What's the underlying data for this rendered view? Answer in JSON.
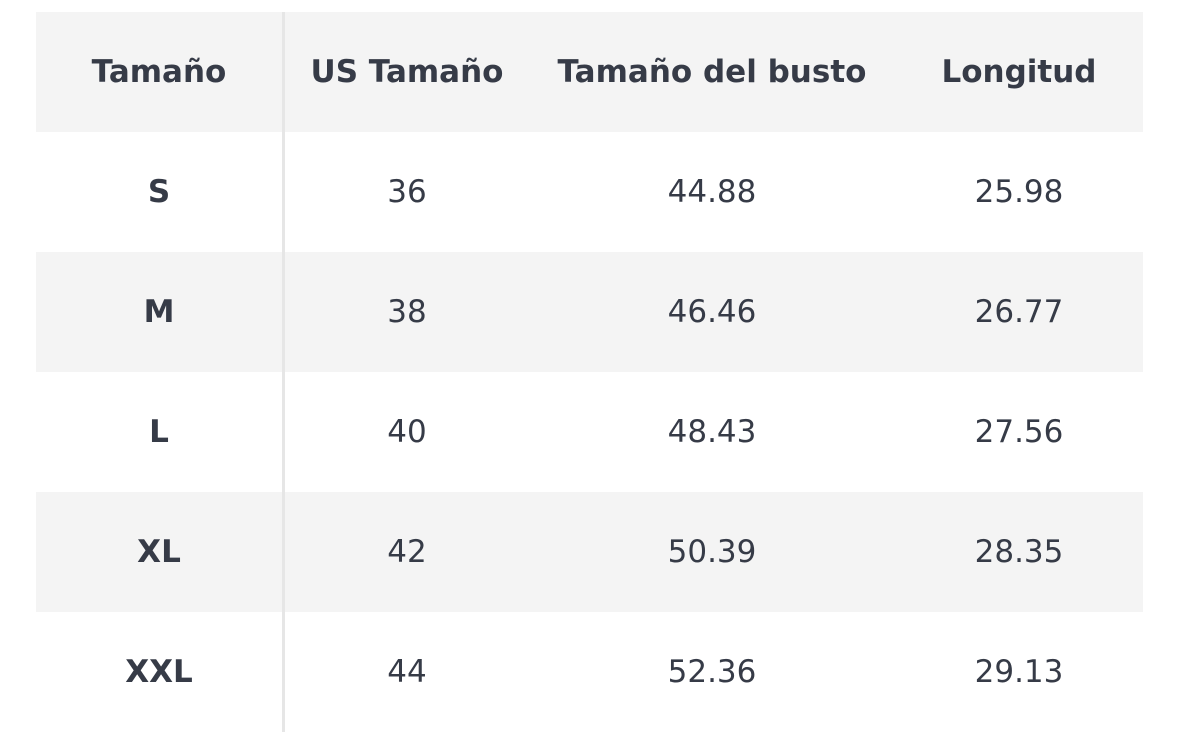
{
  "table": {
    "header": [
      "Tamaño",
      "US Tamaño",
      "Tamaño del busto",
      "Longitud"
    ],
    "rows": [
      [
        "S",
        "36",
        "44.88",
        "25.98"
      ],
      [
        "M",
        "38",
        "46.46",
        "26.77"
      ],
      [
        "L",
        "40",
        "48.43",
        "27.56"
      ],
      [
        "XL",
        "42",
        "50.39",
        "28.35"
      ],
      [
        "XXL",
        "44",
        "52.36",
        "29.13"
      ]
    ]
  }
}
